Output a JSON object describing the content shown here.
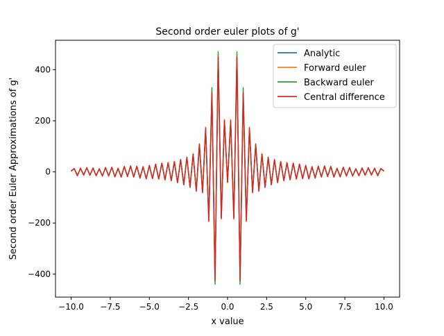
{
  "chart_data": {
    "type": "line",
    "title": "Second order euler plots of g'",
    "xlabel": "x value",
    "ylabel": "Second order Euler Approximations of g'",
    "xlim": [
      -11.0,
      11.0
    ],
    "ylim": [
      -490,
      515
    ],
    "x_ticks": [
      -10.0,
      -7.5,
      -5.0,
      -2.5,
      0.0,
      2.5,
      5.0,
      7.5,
      10.0
    ],
    "x_tick_labels": [
      "−10.0",
      "−7.5",
      "−5.0",
      "−2.5",
      "0.0",
      "2.5",
      "5.0",
      "7.5",
      "10.0"
    ],
    "y_ticks": [
      -400,
      -200,
      0,
      200,
      400
    ],
    "y_tick_labels": [
      "−400",
      "−200",
      "0",
      "200",
      "400"
    ],
    "grid": false,
    "legend_position": "top-right",
    "x": [
      -10.0,
      -9.8,
      -9.6,
      -9.4,
      -9.2,
      -9.0,
      -8.8,
      -8.6,
      -8.4,
      -8.2,
      -8.0,
      -7.8,
      -7.6,
      -7.4,
      -7.2,
      -7.0,
      -6.8,
      -6.6,
      -6.4,
      -6.2,
      -6.0,
      -5.8,
      -5.6,
      -5.4,
      -5.2,
      -5.0,
      -4.8,
      -4.6,
      -4.4,
      -4.2,
      -4.0,
      -3.8,
      -3.6,
      -3.4,
      -3.2,
      -3.0,
      -2.8,
      -2.6,
      -2.4,
      -2.2,
      -2.0,
      -1.8,
      -1.6,
      -1.4,
      -1.2,
      -1.0,
      -0.8,
      -0.6,
      -0.4,
      -0.2,
      0.0,
      0.2,
      0.4,
      0.6,
      0.8,
      1.0,
      1.2,
      1.4,
      1.6,
      1.8,
      2.0,
      2.2,
      2.4,
      2.6,
      2.8,
      3.0,
      3.2,
      3.4,
      3.6,
      3.8,
      4.0,
      4.2,
      4.4,
      4.6,
      4.8,
      5.0,
      5.2,
      5.4,
      5.6,
      5.8,
      6.0,
      6.2,
      6.4,
      6.6,
      6.8,
      7.0,
      7.2,
      7.4,
      7.6,
      7.8,
      8.0,
      8.2,
      8.4,
      8.6,
      8.8,
      9.0,
      9.2,
      9.4,
      9.6,
      9.8,
      10.0
    ],
    "series": [
      {
        "name": "Analytic",
        "color": "#1f77b4",
        "values": [
          4,
          13,
          -14,
          14,
          -12,
          16,
          -13,
          15,
          -15,
          12,
          -16,
          17,
          -16,
          18,
          -19,
          14,
          -20,
          21,
          -18,
          23,
          -20,
          22,
          -24,
          20,
          -27,
          25,
          -26,
          30,
          -28,
          34,
          -31,
          36,
          -34,
          40,
          -42,
          48,
          -50,
          57,
          -60,
          70,
          -75,
          105,
          -80,
          170,
          -190,
          300,
          -420,
          440,
          -180,
          200,
          -40,
          200,
          -180,
          440,
          -420,
          300,
          -190,
          170,
          -80,
          105,
          -75,
          70,
          -60,
          57,
          -50,
          48,
          -42,
          40,
          -34,
          36,
          -31,
          34,
          -28,
          30,
          -26,
          25,
          -27,
          20,
          -24,
          22,
          -20,
          23,
          -18,
          21,
          -20,
          14,
          -19,
          18,
          -16,
          17,
          -16,
          12,
          -15,
          15,
          -13,
          16,
          -12,
          14,
          -14,
          13,
          4
        ]
      },
      {
        "name": "Forward euler",
        "color": "#ff7f0e",
        "values": [
          2,
          14,
          -16,
          15,
          -13,
          17,
          -14,
          16,
          -16,
          13,
          -17,
          18,
          -17,
          19,
          -20,
          15,
          -21,
          22,
          -19,
          24,
          -21,
          23,
          -25,
          21,
          -28,
          26,
          -27,
          31,
          -29,
          35,
          -32,
          37,
          -35,
          41,
          -43,
          49,
          -51,
          58,
          -61,
          71,
          -76,
          108,
          -82,
          175,
          -195,
          305,
          -430,
          445,
          -185,
          205,
          -42,
          205,
          -185,
          445,
          -430,
          305,
          -195,
          175,
          -82,
          108,
          -76,
          71,
          -61,
          58,
          -51,
          49,
          -43,
          41,
          -35,
          37,
          -32,
          35,
          -29,
          31,
          -27,
          26,
          -28,
          21,
          -25,
          23,
          -21,
          24,
          -19,
          22,
          -21,
          15,
          -20,
          19,
          -17,
          18,
          -17,
          13,
          -16,
          16,
          -14,
          17,
          -13,
          15,
          -16,
          14,
          2
        ]
      },
      {
        "name": "Backward euler",
        "color": "#2ca02c",
        "values": [
          5,
          12,
          -13,
          13,
          -11,
          15,
          -12,
          14,
          -14,
          11,
          -15,
          16,
          -15,
          17,
          -18,
          13,
          -19,
          20,
          -17,
          22,
          -19,
          21,
          -23,
          19,
          -26,
          24,
          -25,
          29,
          -27,
          33,
          -30,
          35,
          -33,
          39,
          -41,
          47,
          -49,
          56,
          -59,
          69,
          -74,
          110,
          -78,
          165,
          -185,
          330,
          -440,
          470,
          -175,
          195,
          -38,
          195,
          -175,
          470,
          -440,
          330,
          -185,
          165,
          -78,
          110,
          -74,
          69,
          -59,
          56,
          -49,
          47,
          -41,
          39,
          -33,
          35,
          -30,
          33,
          -27,
          29,
          -25,
          24,
          -26,
          19,
          -23,
          21,
          -19,
          22,
          -17,
          20,
          -19,
          13,
          -18,
          17,
          -15,
          16,
          -15,
          11,
          -14,
          14,
          -12,
          15,
          -11,
          13,
          -13,
          12,
          5
        ]
      },
      {
        "name": "Central difference",
        "color": "#d62728",
        "values": [
          3,
          13,
          -15,
          14,
          -12,
          16,
          -13,
          15,
          -15,
          12,
          -16,
          17,
          -16,
          18,
          -19,
          14,
          -20,
          21,
          -18,
          23,
          -20,
          22,
          -24,
          20,
          -27,
          25,
          -26,
          30,
          -28,
          34,
          -31,
          36,
          -34,
          40,
          -42,
          48,
          -50,
          57,
          -60,
          70,
          -75,
          107,
          -81,
          172,
          -192,
          310,
          -425,
          450,
          -182,
          202,
          -41,
          202,
          -182,
          450,
          -425,
          310,
          -192,
          172,
          -81,
          107,
          -75,
          70,
          -60,
          57,
          -50,
          48,
          -42,
          40,
          -34,
          36,
          -31,
          34,
          -28,
          30,
          -26,
          25,
          -27,
          20,
          -24,
          22,
          -20,
          23,
          -18,
          21,
          -20,
          14,
          -19,
          18,
          -16,
          17,
          -16,
          12,
          -15,
          15,
          -13,
          16,
          -12,
          14,
          -15,
          13,
          3
        ]
      }
    ]
  }
}
